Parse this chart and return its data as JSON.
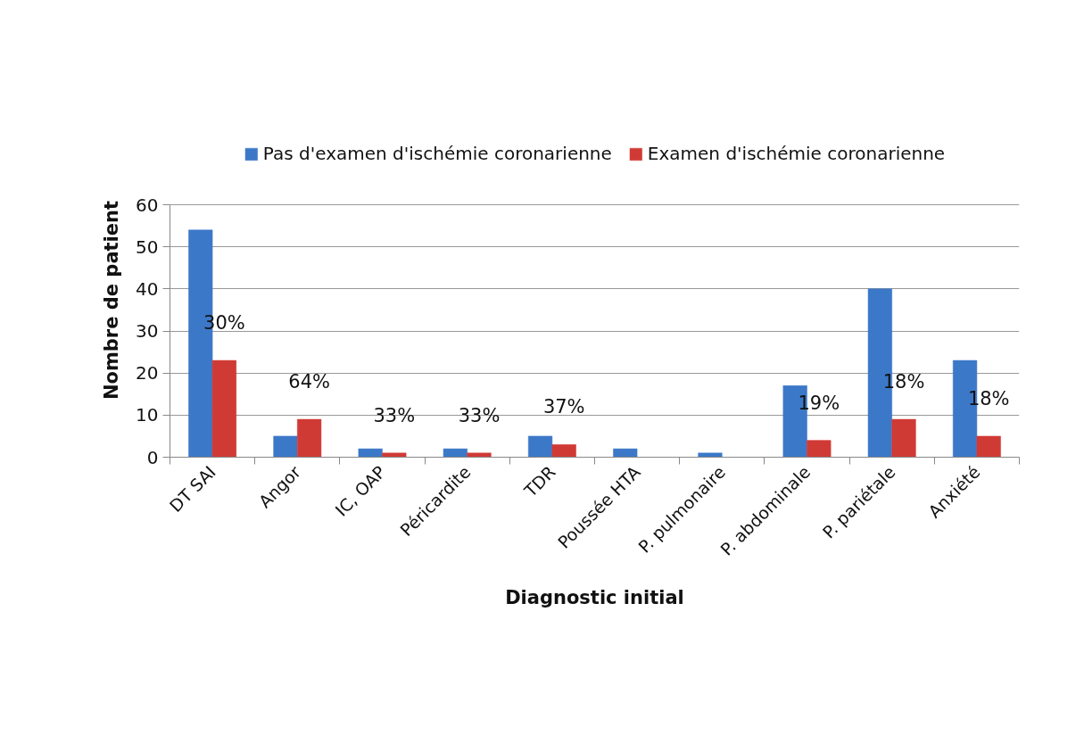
{
  "chart_data": {
    "type": "bar",
    "xlabel": "Diagnostic initial",
    "ylabel": "Nombre de patient",
    "categories": [
      "DT SAI",
      "Angor",
      "IC, OAP",
      "Péricardite",
      "TDR",
      "Poussée HTA",
      "P. pulmonaire",
      "P. abdominale",
      "P. pariétale",
      "Anxiété"
    ],
    "series": [
      {
        "name": "Pas d'examen d'ischémie coronarienne",
        "color": "#3c78c8",
        "values": [
          54,
          5,
          2,
          2,
          5,
          2,
          1,
          17,
          40,
          23
        ]
      },
      {
        "name": "Examen d'ischémie coronarienne",
        "color": "#d03a35",
        "values": [
          23,
          9,
          1,
          1,
          3,
          null,
          null,
          4,
          9,
          5
        ]
      }
    ],
    "annotations": [
      {
        "text": "30%",
        "x": "DT SAI",
        "y": 23
      },
      {
        "text": "64%",
        "x": "Angor",
        "y": 9
      },
      {
        "text": "33%",
        "x": "IC, OAP",
        "y": 1
      },
      {
        "text": "33%",
        "x": "Péricardite",
        "y": 1
      },
      {
        "text": "37%",
        "x": "TDR",
        "y": 3
      },
      {
        "text": "19%",
        "x": "P. abdominale",
        "y": 4
      },
      {
        "text": "18%",
        "x": "P. pariétale",
        "y": 9
      },
      {
        "text": "18%",
        "x": "Anxiété",
        "y": 5
      }
    ],
    "ylim": [
      0,
      60
    ],
    "yticks": [
      0,
      10,
      20,
      30,
      40,
      50,
      60
    ],
    "grid": "y",
    "legend": "top"
  }
}
